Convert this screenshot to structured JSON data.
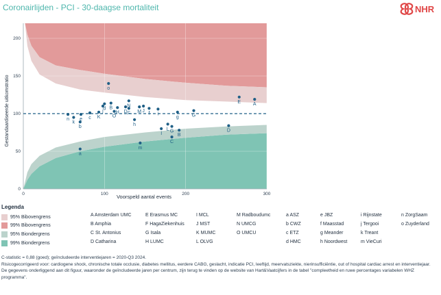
{
  "header": {
    "title": "Coronairlijden - PCI - 30-daagse mortaliteit",
    "logo_text": "NHR"
  },
  "colors": {
    "upper95": "#e8cfcf",
    "upper99": "#e29a9a",
    "lower95": "#bcd3cc",
    "lower99": "#7fc4b4",
    "points": "#1f5f86",
    "ref_line": "#1f5f86",
    "title": "#4db6ac",
    "logo": "#e04646"
  },
  "chart_data": {
    "type": "scatter",
    "title": "",
    "xlabel": "Voorspeld aantal events",
    "ylabel": "Gestandaardiseerde uitkomstratio",
    "xlim": [
      0,
      300
    ],
    "ylim": [
      0,
      220
    ],
    "xticks": [
      0,
      100,
      200,
      300
    ],
    "yticks": [
      0,
      50,
      100,
      150,
      200
    ],
    "reference_line": 100,
    "grid": true,
    "points": [
      {
        "label": "n",
        "x": 55,
        "y": 99
      },
      {
        "label": "a",
        "x": 70,
        "y": 53
      },
      {
        "label": "b",
        "x": 70,
        "y": 89
      },
      {
        "label": "k",
        "x": 62,
        "y": 95
      },
      {
        "label": "e",
        "x": 71,
        "y": 99
      },
      {
        "label": "c",
        "x": 82,
        "y": 101
      },
      {
        "label": "K",
        "x": 93,
        "y": 102
      },
      {
        "label": "j",
        "x": 98,
        "y": 110
      },
      {
        "label": "d",
        "x": 100,
        "y": 113
      },
      {
        "label": "o",
        "x": 105,
        "y": 140
      },
      {
        "label": "B",
        "x": 108,
        "y": 114
      },
      {
        "label": "O",
        "x": 112,
        "y": 103
      },
      {
        "label": "H",
        "x": 116,
        "y": 108
      },
      {
        "label": "D",
        "x": 126,
        "y": 109
      },
      {
        "label": "F",
        "x": 130,
        "y": 107
      },
      {
        "label": "N",
        "x": 130,
        "y": 117
      },
      {
        "label": "m",
        "x": 144,
        "y": 61
      },
      {
        "label": "h",
        "x": 137,
        "y": 92
      },
      {
        "label": "M",
        "x": 143,
        "y": 109
      },
      {
        "label": "J",
        "x": 148,
        "y": 110
      },
      {
        "label": "f",
        "x": 155,
        "y": 107
      },
      {
        "label": "i",
        "x": 166,
        "y": 106
      },
      {
        "label": "I",
        "x": 170,
        "y": 80
      },
      {
        "label": "L",
        "x": 178,
        "y": 86
      },
      {
        "label": "G",
        "x": 183,
        "y": 83
      },
      {
        "label": "C",
        "x": 183,
        "y": 69
      },
      {
        "label": "E",
        "x": 266,
        "y": 122
      },
      {
        "label": "A",
        "x": 285,
        "y": 119
      },
      {
        "label": "D",
        "x": 253,
        "y": 84
      },
      {
        "label": "B",
        "x": 192,
        "y": 78
      },
      {
        "label": "g",
        "x": 190,
        "y": 102
      },
      {
        "label": "G",
        "x": 210,
        "y": 104
      }
    ],
    "bands": {
      "upper99": [
        [
          2,
          220
        ],
        [
          5,
          205
        ],
        [
          10,
          190
        ],
        [
          20,
          175
        ],
        [
          40,
          164
        ],
        [
          70,
          158
        ],
        [
          100,
          153
        ],
        [
          150,
          146
        ],
        [
          200,
          141
        ],
        [
          250,
          137
        ],
        [
          300,
          135
        ]
      ],
      "upper95": [
        [
          2,
          220
        ],
        [
          5,
          190
        ],
        [
          10,
          170
        ],
        [
          20,
          152
        ],
        [
          40,
          140
        ],
        [
          70,
          132
        ],
        [
          100,
          128
        ],
        [
          150,
          122
        ],
        [
          200,
          118
        ],
        [
          250,
          116
        ],
        [
          300,
          114
        ]
      ],
      "lower95": [
        [
          0,
          0
        ],
        [
          5,
          22
        ],
        [
          10,
          33
        ],
        [
          20,
          44
        ],
        [
          40,
          55
        ],
        [
          70,
          63
        ],
        [
          100,
          69
        ],
        [
          150,
          75
        ],
        [
          200,
          80
        ],
        [
          250,
          83
        ],
        [
          300,
          85
        ]
      ],
      "lower99": [
        [
          0,
          0
        ],
        [
          5,
          12
        ],
        [
          10,
          20
        ],
        [
          20,
          30
        ],
        [
          40,
          41
        ],
        [
          70,
          50
        ],
        [
          100,
          56
        ],
        [
          150,
          63
        ],
        [
          200,
          68
        ],
        [
          250,
          72
        ],
        [
          300,
          74
        ]
      ]
    }
  },
  "legend": {
    "title": "Legenda",
    "items": [
      {
        "key": "upper95",
        "label": "95% Bibovengrens"
      },
      {
        "key": "upper99",
        "label": "99% Bibovengrens"
      },
      {
        "key": "lower95",
        "label": "95% Biondergrens"
      },
      {
        "key": "lower99",
        "label": "99% Biondergrens"
      }
    ]
  },
  "hospitals": {
    "col1": [
      "A Amsterdam UMC",
      "B Amphia",
      "C St. Antonius",
      "D Catharina"
    ],
    "col2": [
      "E Erasmus MC",
      "F HagaZiekenhuis",
      "G Isala",
      "H LUMC"
    ],
    "col3": [
      "I MCL",
      "J MST",
      "K MUMC",
      "L OLVG"
    ],
    "col4": [
      "M Radboudumc",
      "N UMCG",
      "O UMCU"
    ],
    "col5": [
      "a ASZ",
      "b CWZ",
      "c ETZ",
      "d HMC"
    ],
    "col6": [
      "e JBZ",
      "f Maasstad",
      "g Meander",
      "h Noordwest"
    ],
    "col7": [
      "i Rijnstate",
      "j Tergooi",
      "k Treant",
      "m VieCuri"
    ],
    "col8": [
      "n ZorgSaam",
      "o Zuyderland"
    ]
  },
  "notes": {
    "line1": "C-statistic = 0,88 (goed); geïncludeerde interventiejaren = 2020-Q3 2024.",
    "line2": "Risicogecorrigeerd voor: cardiogene shock, chronische totale occlusie, diabetes mellitus, eerdere CABG, geslacht, indicatie PCI, leeftijd, meervatsziekte, nierinsufficiëntie, out of hospital cardiac arrest en interventiejaar.",
    "line3": "De gegevens onderliggend aan dit figuur, waaronder de geïncludeerde jaren per centrum, zijn terug te vinden op de website van Hart&Vaatcijfers in de tabel \"compleetheid en ruwe percentages variabelen WHZ programma\"."
  }
}
